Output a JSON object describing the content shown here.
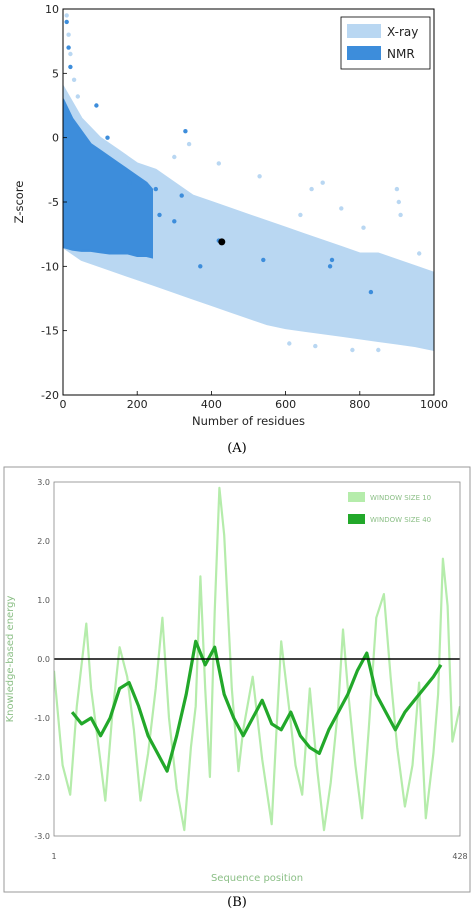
{
  "chart_data": [
    {
      "type": "scatter",
      "panel_label": "(A)",
      "xlabel": "Number of residues",
      "ylabel": "Z-score",
      "xlim": [
        0,
        1000
      ],
      "ylim": [
        -20,
        10
      ],
      "x_ticks": [
        "0",
        "200",
        "400",
        "600",
        "800",
        "1000"
      ],
      "y_ticks": [
        "10",
        "5",
        "0",
        "-5",
        "-10",
        "-15",
        "-20"
      ],
      "legend_position": "top-right",
      "colors": {
        "xray": "#b9d7f2",
        "nmr": "#3d8ddb",
        "highlight": "#000000"
      },
      "series": [
        {
          "name": "X-ray",
          "kind": "density_band",
          "x": [
            0,
            50,
            100,
            150,
            200,
            250,
            300,
            350,
            400,
            450,
            500,
            550,
            600,
            650,
            700,
            750,
            800,
            850,
            900,
            950,
            1000
          ],
          "upper": [
            4,
            1.5,
            0,
            -1,
            -2,
            -2.5,
            -3.5,
            -4.5,
            -5,
            -5.5,
            -6,
            -6.5,
            -7,
            -7.5,
            -8,
            -8.5,
            -9,
            -9,
            -9.5,
            -10,
            -10.5
          ],
          "lower": [
            -8.5,
            -9.5,
            -10,
            -10.5,
            -11,
            -11.5,
            -12,
            -12.5,
            -13,
            -13.5,
            -14,
            -14.5,
            -14.8,
            -15,
            -15.2,
            -15.4,
            -15.6,
            -15.8,
            -16,
            -16.2,
            -16.5
          ],
          "outliers": [
            [
              10,
              9.5
            ],
            [
              15,
              8
            ],
            [
              20,
              6.5
            ],
            [
              30,
              4.5
            ],
            [
              40,
              3.2
            ],
            [
              300,
              -1.5
            ],
            [
              340,
              -0.5
            ],
            [
              420,
              -2
            ],
            [
              530,
              -3
            ],
            [
              640,
              -6
            ],
            [
              670,
              -4
            ],
            [
              700,
              -3.5
            ],
            [
              750,
              -5.5
            ],
            [
              810,
              -7
            ],
            [
              900,
              -4
            ],
            [
              905,
              -5
            ],
            [
              910,
              -6
            ],
            [
              960,
              -9
            ],
            [
              990,
              -12
            ],
            [
              610,
              -16
            ],
            [
              680,
              -16.2
            ],
            [
              780,
              -16.5
            ],
            [
              850,
              -16.5
            ]
          ]
        },
        {
          "name": "NMR",
          "kind": "density_band",
          "x": [
            0,
            25,
            50,
            75,
            100,
            125,
            150,
            175,
            200,
            225,
            240
          ],
          "upper": [
            3,
            1.5,
            0.5,
            -0.5,
            -1,
            -1.5,
            -2,
            -2.5,
            -3,
            -3.5,
            -4
          ],
          "lower": [
            -8.5,
            -8.7,
            -8.8,
            -8.8,
            -8.9,
            -9,
            -9,
            -9,
            -9.2,
            -9.2,
            -9.3
          ],
          "outliers": [
            [
              10,
              9
            ],
            [
              15,
              7
            ],
            [
              20,
              5.5
            ],
            [
              90,
              2.5
            ],
            [
              120,
              0
            ],
            [
              180,
              -3.5
            ],
            [
              250,
              -4
            ],
            [
              260,
              -6
            ],
            [
              300,
              -6.5
            ],
            [
              320,
              -4.5
            ],
            [
              330,
              0.5
            ],
            [
              370,
              -10
            ],
            [
              420,
              -8
            ],
            [
              540,
              -9.5
            ],
            [
              720,
              -10
            ],
            [
              725,
              -9.5
            ],
            [
              830,
              -12
            ]
          ]
        },
        {
          "name": "Query structure",
          "kind": "point",
          "x": 428,
          "y": -8.1
        }
      ]
    },
    {
      "type": "line",
      "panel_label": "(B)",
      "xlabel": "Sequence position",
      "ylabel": "Knowledge-based energy",
      "xlim": [
        1,
        428
      ],
      "ylim": [
        -3,
        3
      ],
      "x_ticks": [
        "1",
        "428"
      ],
      "y_ticks": [
        "3.0",
        "2.0",
        "1.0",
        "0.0",
        "-1.0",
        "-2.0",
        "-3.0"
      ],
      "legend_position": "top-right",
      "colors": {
        "window10": "#b5ecab",
        "window40": "#22a82a",
        "zero": "#000000"
      },
      "series": [
        {
          "name": "WINDOW SIZE 10",
          "x": [
            1,
            10,
            18,
            25,
            35,
            40,
            48,
            55,
            62,
            70,
            78,
            85,
            92,
            100,
            108,
            115,
            122,
            130,
            138,
            145,
            150,
            155,
            160,
            165,
            170,
            175,
            180,
            188,
            195,
            200,
            210,
            220,
            230,
            235,
            240,
            248,
            255,
            262,
            270,
            278,
            285,
            292,
            300,
            305,
            310,
            318,
            325,
            332,
            340,
            348,
            355,
            362,
            370,
            378,
            385,
            392,
            400,
            405,
            410,
            415,
            420,
            428
          ],
          "y": [
            -0.2,
            -1.8,
            -2.3,
            -0.8,
            0.6,
            -0.5,
            -1.5,
            -2.4,
            -1.0,
            0.2,
            -0.3,
            -1.2,
            -2.4,
            -1.6,
            -0.5,
            0.7,
            -1.0,
            -2.2,
            -2.9,
            -1.5,
            -0.8,
            1.4,
            -0.5,
            -2.0,
            0.8,
            2.9,
            2.1,
            -0.5,
            -1.9,
            -1.2,
            -0.3,
            -1.7,
            -2.8,
            -1.2,
            0.3,
            -0.8,
            -1.8,
            -2.3,
            -0.5,
            -1.9,
            -2.9,
            -2.1,
            -0.8,
            0.5,
            -0.5,
            -1.8,
            -2.7,
            -1.2,
            0.7,
            1.1,
            -0.3,
            -1.5,
            -2.5,
            -1.8,
            -0.4,
            -2.7,
            -1.6,
            -0.6,
            1.7,
            0.9,
            -1.4,
            -0.8
          ]
        },
        {
          "name": "WINDOW SIZE 40",
          "x": [
            20,
            30,
            40,
            50,
            60,
            70,
            80,
            90,
            100,
            110,
            120,
            130,
            140,
            150,
            160,
            170,
            180,
            190,
            200,
            210,
            220,
            230,
            240,
            250,
            260,
            270,
            280,
            290,
            300,
            310,
            320,
            330,
            340,
            350,
            360,
            370,
            380,
            390,
            400,
            408
          ],
          "y": [
            -0.9,
            -1.1,
            -1.0,
            -1.3,
            -1.0,
            -0.5,
            -0.4,
            -0.8,
            -1.3,
            -1.6,
            -1.9,
            -1.3,
            -0.6,
            0.3,
            -0.1,
            0.2,
            -0.6,
            -1.0,
            -1.3,
            -1.0,
            -0.7,
            -1.1,
            -1.2,
            -0.9,
            -1.3,
            -1.5,
            -1.6,
            -1.2,
            -0.9,
            -0.6,
            -0.2,
            0.1,
            -0.6,
            -0.9,
            -1.2,
            -0.9,
            -0.7,
            -0.5,
            -0.3,
            -0.1
          ]
        }
      ]
    }
  ]
}
